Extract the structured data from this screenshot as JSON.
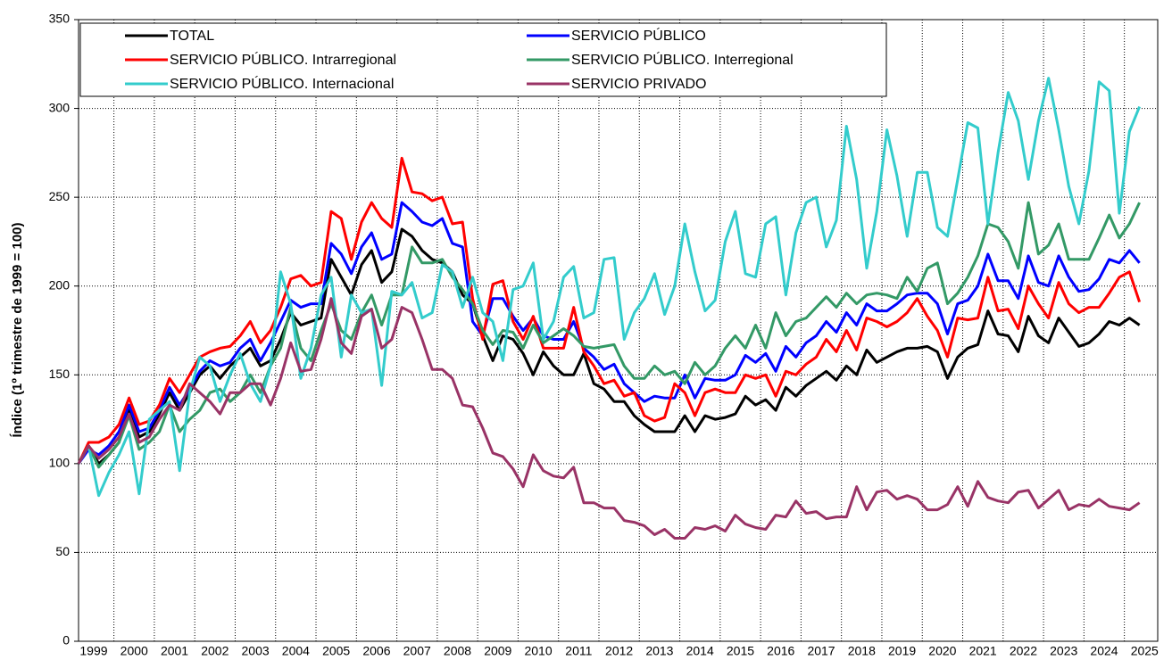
{
  "chart_data": {
    "type": "line",
    "y_label": "Índice (1º trimestre de 1999 = 100)",
    "categories": [
      "1999",
      "2000",
      "2001",
      "2002",
      "2003",
      "2004",
      "2005",
      "2006",
      "2007",
      "2008",
      "2009",
      "2010",
      "2011",
      "2012",
      "2013",
      "2014",
      "2015",
      "2016",
      "2017",
      "2018",
      "2019",
      "2020",
      "2021",
      "2022",
      "2023",
      "2024",
      "2025"
    ],
    "x": [
      1999,
      1999.25,
      1999.5,
      1999.75,
      2000,
      2000.25,
      2000.5,
      2000.75,
      2001,
      2001.25,
      2001.5,
      2001.75,
      2002,
      2002.25,
      2002.5,
      2002.75,
      2003,
      2003.25,
      2003.5,
      2003.75,
      2004,
      2004.25,
      2004.5,
      2004.75,
      2005,
      2005.25,
      2005.5,
      2005.75,
      2006,
      2006.25,
      2006.5,
      2006.75,
      2007,
      2007.25,
      2007.5,
      2007.75,
      2008,
      2008.25,
      2008.5,
      2008.75,
      2009,
      2009.25,
      2009.5,
      2009.75,
      2010,
      2010.25,
      2010.5,
      2010.75,
      2011,
      2011.25,
      2011.5,
      2011.75,
      2012,
      2012.25,
      2012.5,
      2012.75,
      2013,
      2013.25,
      2013.5,
      2013.75,
      2014,
      2014.25,
      2014.5,
      2014.75,
      2015,
      2015.25,
      2015.5,
      2015.75,
      2016,
      2016.25,
      2016.5,
      2016.75,
      2017,
      2017.25,
      2017.5,
      2017.75,
      2018,
      2018.25,
      2018.5,
      2018.75,
      2019,
      2019.25,
      2019.5,
      2019.75,
      2020,
      2020.25,
      2020.5,
      2020.75,
      2021,
      2021.25,
      2021.5,
      2021.75,
      2022,
      2022.25,
      2022.5,
      2022.75,
      2023,
      2023.25,
      2023.5,
      2023.75,
      2024,
      2024.25,
      2024.5,
      2024.75,
      2025,
      2025.25
    ],
    "xlim": [
      1999,
      2025.7
    ],
    "ylim": [
      0,
      350
    ],
    "yticks": [
      0,
      50,
      100,
      150,
      200,
      250,
      300,
      350
    ],
    "grid": true,
    "series": [
      {
        "name": "TOTAL",
        "color": "#000000",
        "values": [
          100,
          110,
          100,
          105,
          112,
          130,
          115,
          118,
          128,
          140,
          130,
          140,
          150,
          155,
          148,
          155,
          160,
          165,
          155,
          158,
          170,
          185,
          178,
          180,
          182,
          215,
          205,
          195,
          212,
          220,
          202,
          208,
          232,
          228,
          220,
          215,
          213,
          208,
          195,
          190,
          172,
          158,
          172,
          170,
          162,
          150,
          163,
          155,
          150,
          150,
          162,
          145,
          142,
          135,
          135,
          127,
          122,
          118,
          118,
          118,
          127,
          118,
          127,
          125,
          126,
          128,
          138,
          133,
          136,
          130,
          143,
          138,
          144,
          148,
          152,
          147,
          155,
          150,
          164,
          157,
          160,
          163,
          165,
          165,
          166,
          163,
          148,
          160,
          165,
          167,
          186,
          173,
          172,
          163,
          183,
          172,
          168,
          182,
          174,
          166,
          168,
          173,
          180,
          178,
          182,
          178
        ]
      },
      {
        "name": "SERVICIO PÚBLICO",
        "color": "#0000ff",
        "values": [
          100,
          108,
          105,
          110,
          118,
          133,
          118,
          120,
          130,
          143,
          133,
          142,
          152,
          158,
          155,
          157,
          165,
          170,
          158,
          168,
          180,
          192,
          188,
          190,
          190,
          224,
          218,
          207,
          222,
          230,
          215,
          218,
          247,
          242,
          236,
          234,
          238,
          224,
          222,
          180,
          172,
          193,
          193,
          183,
          175,
          182,
          172,
          170,
          170,
          180,
          165,
          160,
          153,
          156,
          145,
          140,
          135,
          138,
          137,
          137,
          150,
          137,
          148,
          147,
          147,
          150,
          161,
          157,
          162,
          152,
          166,
          160,
          168,
          172,
          180,
          174,
          185,
          178,
          190,
          186,
          186,
          190,
          195,
          196,
          196,
          190,
          173,
          190,
          192,
          200,
          218,
          203,
          203,
          193,
          217,
          202,
          200,
          217,
          205,
          197,
          198,
          204,
          215,
          213,
          220,
          213
        ]
      },
      {
        "name": "SERVICIO PÚBLICO. Intrarregional",
        "color": "#ff0000",
        "values": [
          100,
          112,
          112,
          115,
          122,
          137,
          122,
          124,
          133,
          148,
          140,
          150,
          160,
          163,
          165,
          166,
          172,
          180,
          168,
          175,
          188,
          204,
          206,
          200,
          202,
          242,
          238,
          215,
          236,
          247,
          238,
          233,
          272,
          253,
          252,
          248,
          250,
          235,
          236,
          193,
          170,
          201,
          203,
          180,
          170,
          183,
          165,
          165,
          165,
          188,
          163,
          155,
          145,
          147,
          138,
          140,
          127,
          124,
          126,
          145,
          140,
          127,
          140,
          142,
          140,
          140,
          150,
          148,
          150,
          138,
          152,
          150,
          156,
          160,
          170,
          163,
          175,
          164,
          182,
          180,
          177,
          180,
          185,
          193,
          183,
          175,
          160,
          182,
          181,
          182,
          205,
          186,
          187,
          176,
          200,
          190,
          182,
          202,
          190,
          185,
          188,
          188,
          196,
          205,
          208,
          191
        ]
      },
      {
        "name": "SERVICIO PÚBLICO. Interregional",
        "color": "#339966",
        "values": [
          100,
          110,
          98,
          105,
          112,
          127,
          108,
          112,
          118,
          133,
          118,
          125,
          130,
          140,
          142,
          135,
          140,
          150,
          140,
          155,
          165,
          188,
          165,
          158,
          175,
          190,
          175,
          170,
          185,
          195,
          178,
          195,
          195,
          222,
          213,
          213,
          215,
          205,
          198,
          190,
          175,
          167,
          175,
          174,
          165,
          178,
          168,
          172,
          176,
          172,
          166,
          165,
          166,
          167,
          155,
          148,
          148,
          155,
          150,
          152,
          145,
          157,
          150,
          155,
          165,
          172,
          165,
          178,
          165,
          185,
          172,
          180,
          182,
          188,
          194,
          188,
          196,
          190,
          195,
          196,
          195,
          193,
          205,
          197,
          210,
          213,
          190,
          196,
          205,
          217,
          235,
          233,
          225,
          210,
          247,
          218,
          223,
          235,
          215,
          215,
          215,
          227,
          240,
          227,
          235,
          247
        ]
      },
      {
        "name": "SERVICIO PÚBLICO. Internacional",
        "color": "#33cccc",
        "values": [
          100,
          110,
          82,
          95,
          105,
          118,
          83,
          125,
          130,
          135,
          96,
          140,
          160,
          155,
          135,
          150,
          162,
          145,
          135,
          155,
          208,
          190,
          148,
          165,
          195,
          205,
          160,
          195,
          185,
          187,
          144,
          197,
          195,
          202,
          182,
          185,
          212,
          208,
          188,
          205,
          185,
          180,
          158,
          198,
          200,
          213,
          170,
          180,
          205,
          211,
          182,
          185,
          215,
          216,
          170,
          185,
          193,
          207,
          184,
          200,
          235,
          208,
          186,
          192,
          225,
          242,
          207,
          205,
          235,
          239,
          195,
          230,
          247,
          250,
          222,
          237,
          290,
          260,
          210,
          242,
          288,
          262,
          228,
          264,
          264,
          233,
          228,
          260,
          292,
          289,
          235,
          275,
          309,
          293,
          260,
          293,
          317,
          288,
          256,
          235,
          265,
          315,
          310,
          241,
          287,
          301
        ]
      },
      {
        "name": "SERVICIO PRIVADO",
        "color": "#993366",
        "values": [
          100,
          110,
          103,
          108,
          115,
          128,
          112,
          115,
          125,
          133,
          130,
          145,
          140,
          135,
          128,
          140,
          140,
          145,
          145,
          133,
          148,
          168,
          152,
          153,
          170,
          193,
          168,
          162,
          183,
          187,
          165,
          170,
          188,
          185,
          170,
          153,
          153,
          148,
          133,
          132,
          120,
          106,
          104,
          97,
          87,
          105,
          96,
          93,
          92,
          98,
          78,
          78,
          75,
          75,
          68,
          67,
          65,
          60,
          63,
          58,
          58,
          64,
          63,
          65,
          62,
          71,
          66,
          64,
          63,
          71,
          70,
          79,
          72,
          73,
          69,
          70,
          70,
          87,
          74,
          84,
          85,
          80,
          82,
          80,
          74,
          74,
          77,
          87,
          76,
          90,
          81,
          79,
          78,
          84,
          85,
          75,
          80,
          85,
          74,
          77,
          76,
          80,
          76,
          75,
          74,
          78
        ]
      }
    ]
  }
}
